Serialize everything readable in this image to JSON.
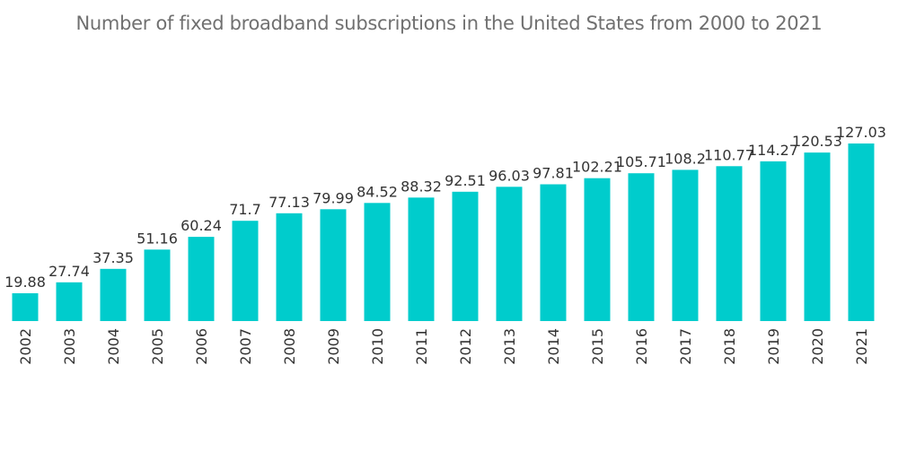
{
  "chart_data": {
    "type": "bar",
    "title": "Number of fixed broadband subscriptions in the United States from 2000 to 2021",
    "categories": [
      "2002",
      "2003",
      "2004",
      "2005",
      "2006",
      "2007",
      "2008",
      "2009",
      "2010",
      "2011",
      "2012",
      "2013",
      "2014",
      "2015",
      "2016",
      "2017",
      "2018",
      "2019",
      "2020",
      "2021"
    ],
    "values": [
      19.88,
      27.74,
      37.35,
      51.16,
      60.24,
      71.7,
      77.13,
      79.99,
      84.52,
      88.32,
      92.51,
      96.03,
      97.81,
      102.21,
      105.71,
      108.2,
      110.77,
      114.27,
      120.53,
      127.03
    ],
    "value_labels": [
      "19.88",
      "27.74",
      "37.35",
      "51.16",
      "60.24",
      "71.7",
      "77.13",
      "79.99",
      "84.52",
      "88.32",
      "92.51",
      "96.03",
      "97.81",
      "102.21",
      "105.71",
      "108.2",
      "110.77",
      "114.27",
      "120.53",
      "127.03"
    ],
    "xlabel": "",
    "ylabel": "",
    "ylim": [
      0,
      127.03
    ],
    "grid": false,
    "bar_color": "#00CCCC"
  }
}
